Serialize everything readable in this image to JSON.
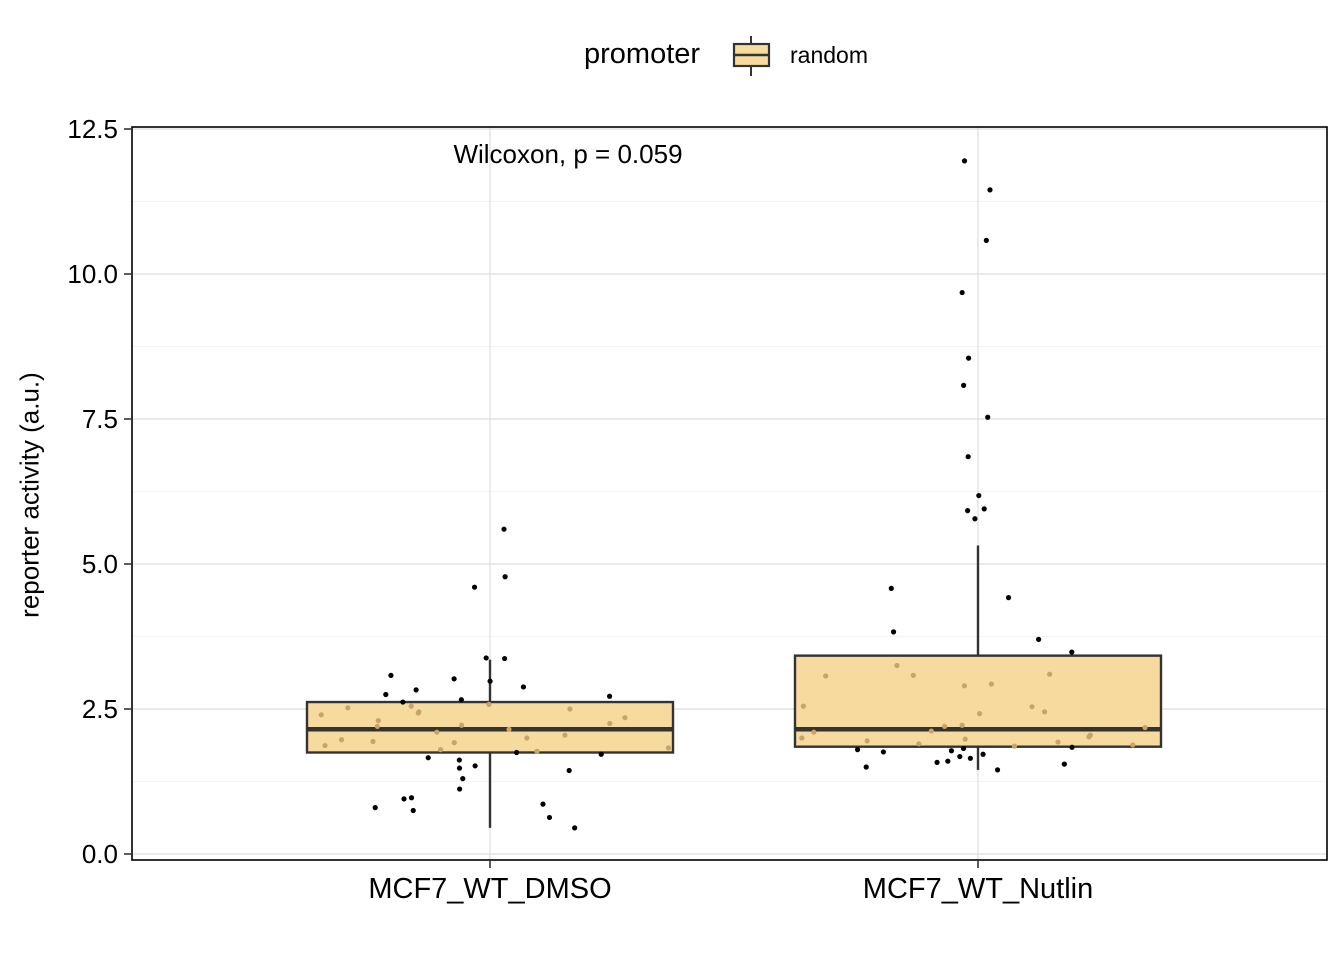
{
  "legend": {
    "title": "promoter",
    "items": [
      {
        "label": "random",
        "fill": "#F7DA9E",
        "stroke": "#333333"
      }
    ]
  },
  "chart_data": {
    "type": "box",
    "title": "",
    "xlabel": "",
    "ylabel": "reporter activity (a.u.)",
    "ylim": [
      -0.05,
      12.5
    ],
    "yticks": [
      0.0,
      2.5,
      5.0,
      7.5,
      10.0,
      12.5
    ],
    "ytick_labels": [
      "0.0",
      "2.5",
      "5.0",
      "7.5",
      "10.0",
      "12.5"
    ],
    "grid": true,
    "legend_position": "top",
    "annotation": {
      "text": "Wilcoxon, p = 0.059",
      "x": "MCF7_WT_DMSO",
      "y": 12.05
    },
    "categories": [
      "MCF7_WT_DMSO",
      "MCF7_WT_Nutlin"
    ],
    "series": [
      {
        "group": "random",
        "boxes": [
          {
            "category": "MCF7_WT_DMSO",
            "q1": 1.75,
            "median": 2.15,
            "q3": 2.62,
            "whisker_low": 0.45,
            "whisker_high": 3.35,
            "points": [
              5.6,
              4.78,
              4.6,
              3.38,
              3.37,
              3.08,
              3.02,
              2.98,
              2.88,
              2.83,
              2.75,
              2.72,
              2.66,
              2.62,
              2.58,
              2.55,
              2.52,
              2.5,
              2.45,
              2.43,
              2.4,
              2.35,
              2.3,
              2.25,
              2.22,
              2.2,
              2.15,
              2.1,
              2.05,
              2.0,
              1.97,
              1.94,
              1.92,
              1.87,
              1.83,
              1.8,
              1.77,
              1.75,
              1.72,
              1.66,
              1.62,
              1.52,
              1.48,
              1.44,
              1.3,
              1.12,
              0.97,
              0.95,
              0.86,
              0.8,
              0.75,
              0.63,
              0.45
            ]
          },
          {
            "category": "MCF7_WT_Nutlin",
            "q1": 1.85,
            "median": 2.15,
            "q3": 3.42,
            "whisker_low": 1.45,
            "whisker_high": 5.32,
            "points": [
              11.95,
              11.45,
              10.58,
              9.68,
              8.55,
              8.08,
              7.53,
              6.85,
              6.18,
              5.95,
              5.92,
              5.78,
              4.58,
              4.42,
              3.83,
              3.7,
              3.48,
              3.25,
              3.1,
              3.08,
              3.07,
              2.93,
              2.9,
              2.55,
              2.54,
              2.45,
              2.42,
              2.22,
              2.2,
              2.18,
              2.12,
              2.1,
              2.05,
              2.02,
              2.0,
              1.98,
              1.95,
              1.93,
              1.9,
              1.88,
              1.86,
              1.84,
              1.82,
              1.8,
              1.78,
              1.76,
              1.72,
              1.68,
              1.65,
              1.6,
              1.58,
              1.55,
              1.5,
              1.45
            ]
          }
        ]
      }
    ]
  }
}
